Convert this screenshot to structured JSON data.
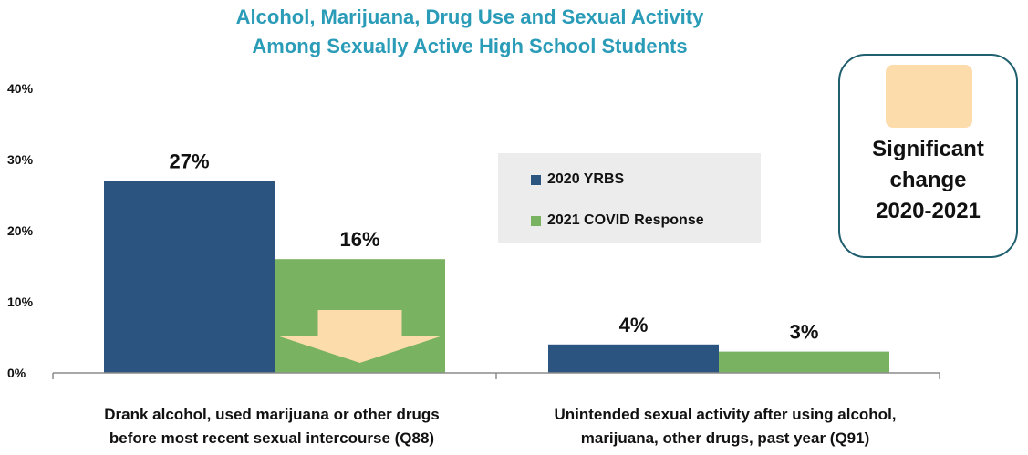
{
  "chart_data": {
    "type": "bar",
    "title_lines": [
      "Alcohol, Marijuana, Drug Use and Sexual Activity",
      "Among Sexually Active High School Students"
    ],
    "categories": [
      [
        "Drank alcohol, used marijuana or other drugs",
        "before most recent sexual intercourse (Q88)"
      ],
      [
        "Unintended sexual activity after using alcohol,",
        "marijuana, other drugs, past year (Q91)"
      ]
    ],
    "series": [
      {
        "name": "2020 YRBS",
        "values": [
          27,
          4
        ],
        "labels": [
          "27%",
          "4%"
        ],
        "color": "#2b5580"
      },
      {
        "name": "2021 COVID Response",
        "values": [
          16,
          3
        ],
        "labels": [
          "16%",
          "3%"
        ],
        "color": "#79b261"
      }
    ],
    "y_ticks": [
      {
        "value": 0,
        "label": "0%"
      },
      {
        "value": 10,
        "label": "10%"
      },
      {
        "value": 20,
        "label": "20%"
      },
      {
        "value": 30,
        "label": "30%"
      },
      {
        "value": 40,
        "label": "40%"
      }
    ],
    "ylim": [
      0,
      40
    ],
    "grid": false,
    "legend_position": "center-right",
    "significant_change": [
      {
        "category_index": 0,
        "series_index": 1,
        "direction": "down"
      }
    ]
  },
  "significance_box": {
    "lines": [
      "Significant",
      "change",
      "2020-2021"
    ],
    "color": "#fcdcab"
  },
  "colors": {
    "title": "#2a9cb8",
    "axis": "#8c8c8c",
    "arrow": "#fcdcab"
  }
}
